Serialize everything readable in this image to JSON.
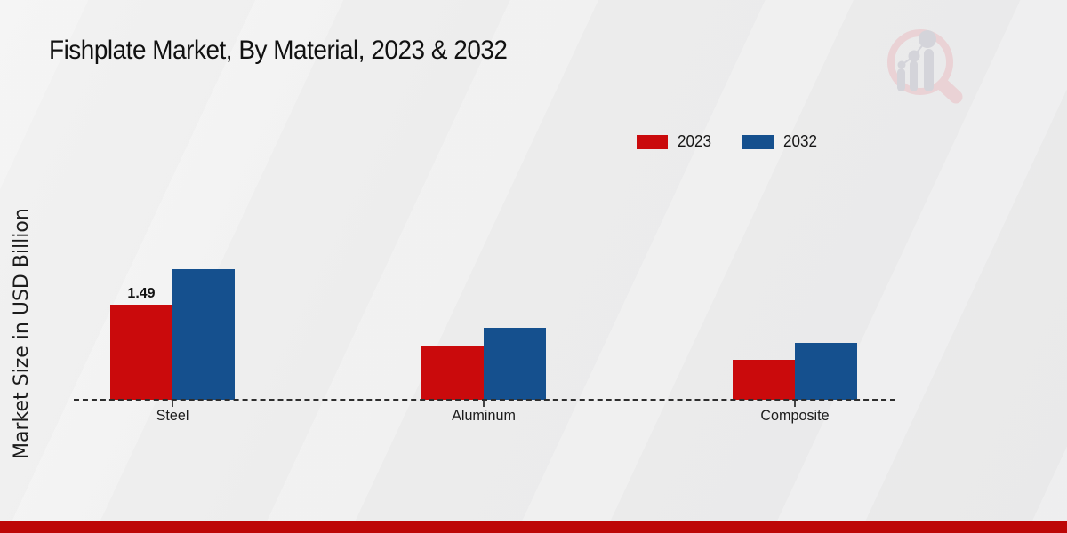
{
  "chart_data": {
    "type": "bar",
    "title": "Fishplate Market, By Material, 2023 & 2032",
    "ylabel": "Market Size in USD Billion",
    "xlabel": "",
    "categories": [
      "Steel",
      "Aluminum",
      "Composite"
    ],
    "series": [
      {
        "name": "2023",
        "color": "#ca0a0c",
        "values": [
          1.49,
          0.85,
          0.62
        ]
      },
      {
        "name": "2032",
        "color": "#15508e",
        "values": [
          2.05,
          1.13,
          0.89
        ]
      }
    ],
    "data_labels": [
      {
        "category": "Steel",
        "series": "2023",
        "text": "1.49"
      }
    ],
    "ylim": [
      0,
      2.2
    ],
    "grid": false,
    "legend_position": "top-right",
    "baseline_style": "dashed"
  },
  "branding": {
    "logo_icon": "magnifier-bar-chart-logo"
  },
  "colors": {
    "series_2023": "#ca0a0c",
    "series_2032": "#15508e",
    "background": "#ececec",
    "footer_bar": "#bd0707",
    "baseline": "#2e2e2e"
  }
}
